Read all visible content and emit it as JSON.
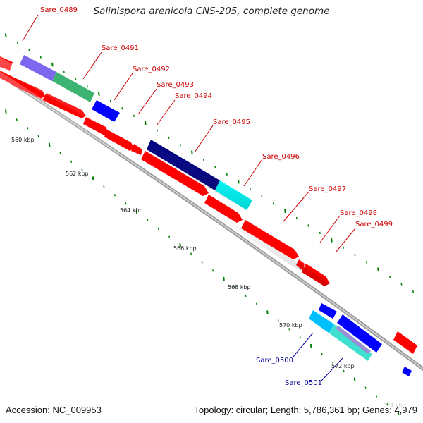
{
  "title": "Salinispora arenicola CNS-205, complete genome",
  "accession": "Accession: NC_009953",
  "stats": {
    "topology": "Topology: circular",
    "length": "Length: 5,786,361 bp",
    "genes": "Genes: 4,979"
  },
  "colors": {
    "forward_default": "#ff0000",
    "reverse_default": "#0000ff",
    "backbone": "#808080",
    "ticks": "#008000",
    "label_forward": "#cc0000",
    "label_reverse": "#000099",
    "feature_lavender": "#7b68ee",
    "feature_spring_green": "#3cb371",
    "feature_navy": "#000080",
    "feature_cyan": "#00ffff",
    "feature_light_cyan": "#40e0d0",
    "feature_pale_violet": "#9a8fd6"
  },
  "gene_labels": [
    {
      "name": "Sare_0489",
      "strand": "forward"
    },
    {
      "name": "Sare_0491",
      "strand": "forward"
    },
    {
      "name": "Sare_0492",
      "strand": "forward"
    },
    {
      "name": "Sare_0493",
      "strand": "forward"
    },
    {
      "name": "Sare_0494",
      "strand": "forward"
    },
    {
      "name": "Sare_0495",
      "strand": "forward"
    },
    {
      "name": "Sare_0496",
      "strand": "forward"
    },
    {
      "name": "Sare_0497",
      "strand": "forward"
    },
    {
      "name": "Sare_0498",
      "strand": "forward"
    },
    {
      "name": "Sare_0499",
      "strand": "forward"
    },
    {
      "name": "Sare_0500",
      "strand": "reverse"
    },
    {
      "name": "Sare_0501",
      "strand": "reverse"
    }
  ],
  "kbp_ticks": [
    "560 kbp",
    "562 kbp",
    "564 kbp",
    "566 kbp",
    "568 kbp",
    "570 kbp",
    "572 kbp",
    "574 kbp"
  ]
}
